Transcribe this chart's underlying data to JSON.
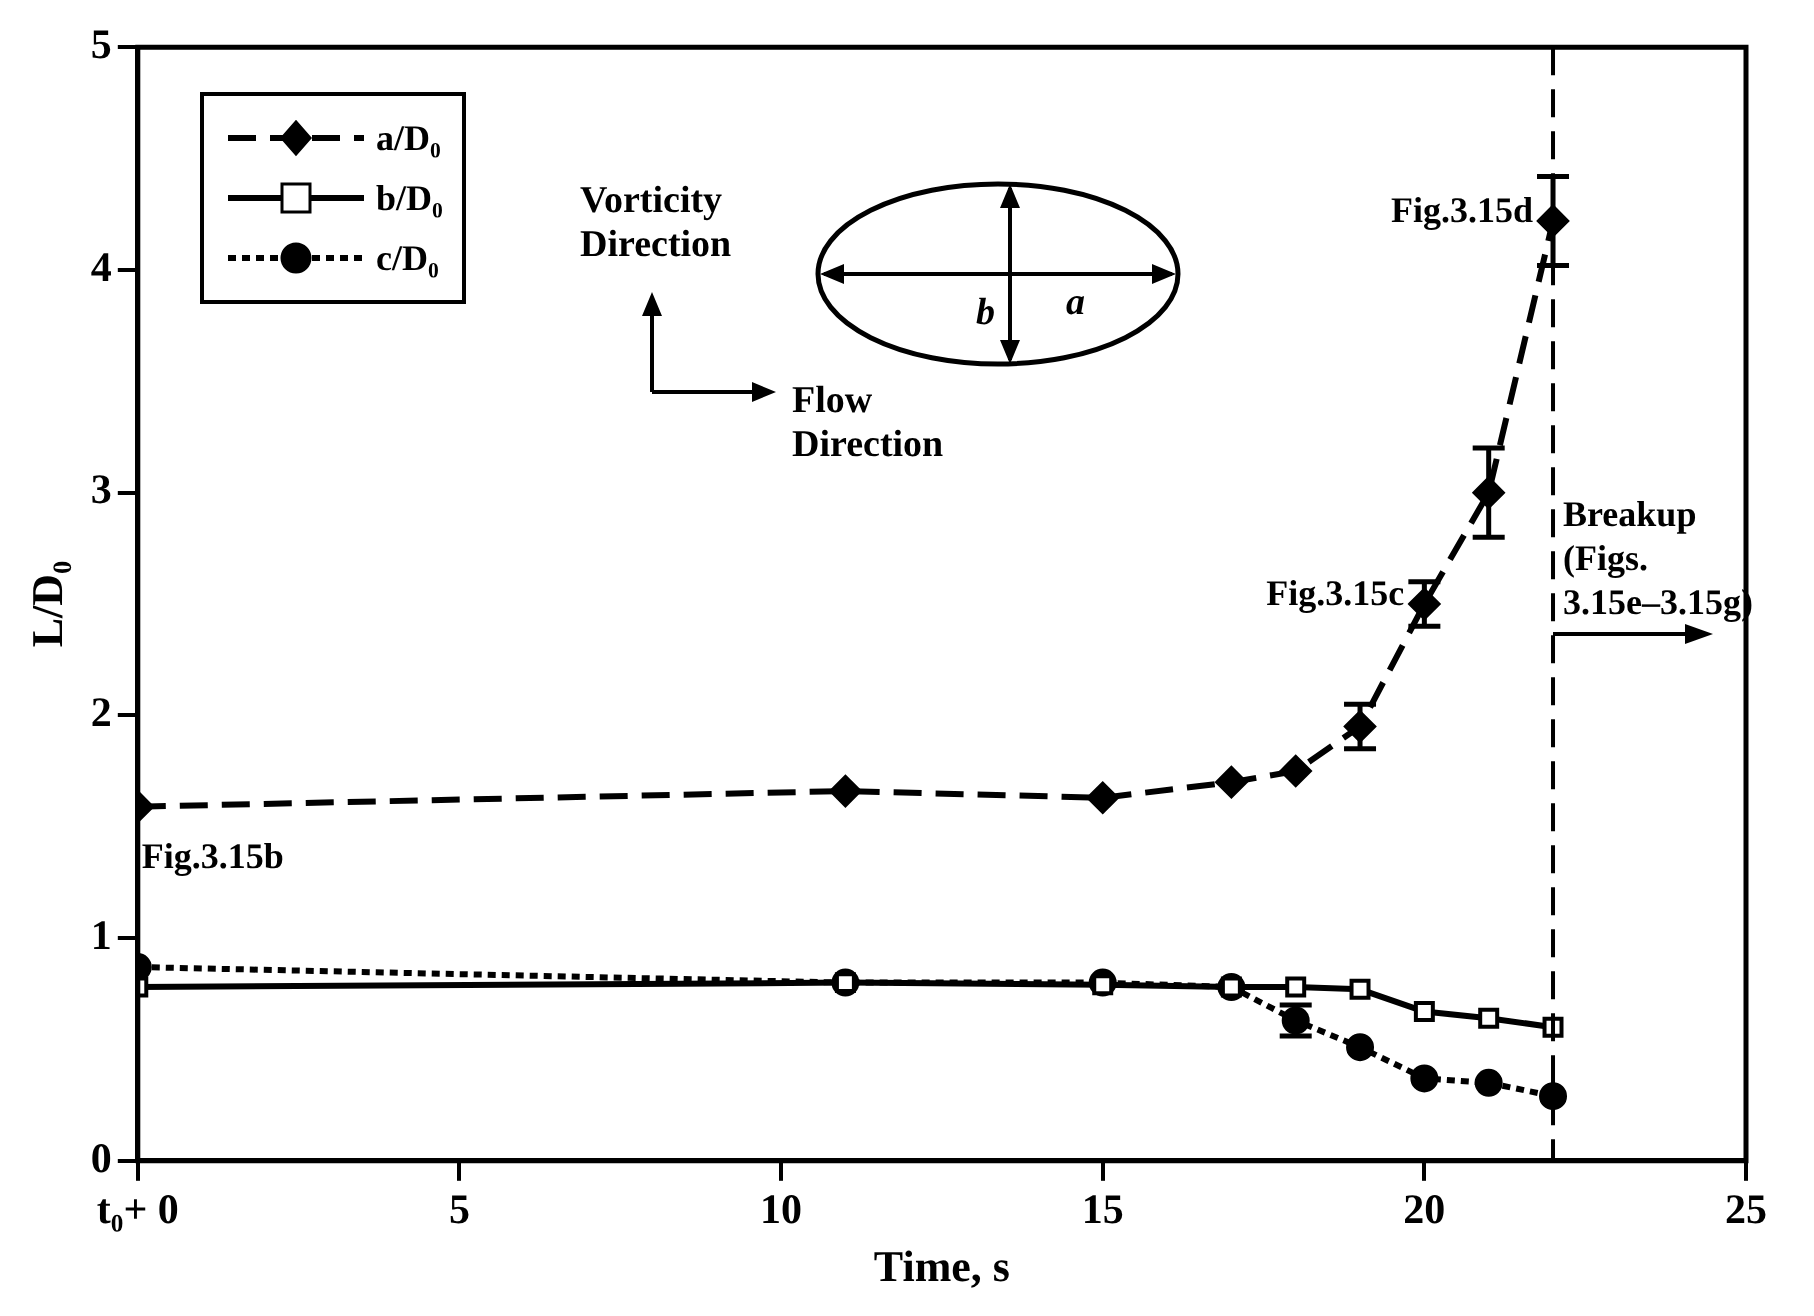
{
  "chart_data": {
    "type": "line",
    "xlabel": "Time, s",
    "ylabel": "L/D₀",
    "x": [
      0,
      11,
      15,
      17,
      18,
      19,
      20,
      21,
      22
    ],
    "series": [
      {
        "name": "a/D₀",
        "color": "#000000",
        "marker": "diamond",
        "line_style": "dashed",
        "values": [
          1.59,
          1.66,
          1.63,
          1.7,
          1.75,
          1.95,
          2.5,
          3.0,
          4.22
        ],
        "errors": [
          null,
          null,
          null,
          null,
          null,
          0.1,
          0.1,
          0.2,
          0.2
        ]
      },
      {
        "name": "b/D₀",
        "color": "#000000",
        "marker": "square",
        "line_style": "solid",
        "values": [
          0.78,
          0.8,
          0.79,
          0.78,
          0.78,
          0.77,
          0.67,
          0.64,
          0.6
        ]
      },
      {
        "name": "c/D₀",
        "color": "#000000",
        "marker": "circle",
        "line_style": "dotted",
        "values": [
          0.87,
          0.8,
          0.8,
          0.78,
          0.63,
          0.51,
          0.37,
          0.35,
          0.29
        ],
        "errors": [
          null,
          null,
          null,
          null,
          0.07,
          null,
          null,
          null,
          null
        ]
      }
    ],
    "xlim": [
      0,
      25
    ],
    "xticks": [
      {
        "value": 0,
        "label": "t₀+ 0"
      },
      5,
      10,
      15,
      20,
      25
    ],
    "ylim": [
      0,
      5
    ],
    "yticks": [
      0,
      1,
      2,
      3,
      4,
      5
    ],
    "grid": false,
    "legend": "top left",
    "ref_lines": [
      {
        "axis": "x",
        "value": 22,
        "label": "Breakup (Figs. 3.15e–3.15g)",
        "line_style": "dashed"
      }
    ],
    "annotations": [
      {
        "text": "Fig.3.15b",
        "x": 0,
        "y": 1.59
      },
      {
        "text": "Fig.3.15c",
        "x": 20,
        "y": 2.5
      },
      {
        "text": "Fig.3.15d",
        "x": 22,
        "y": 4.22
      },
      "Vorticity Direction",
      "Flow Direction",
      "a",
      "b"
    ]
  }
}
